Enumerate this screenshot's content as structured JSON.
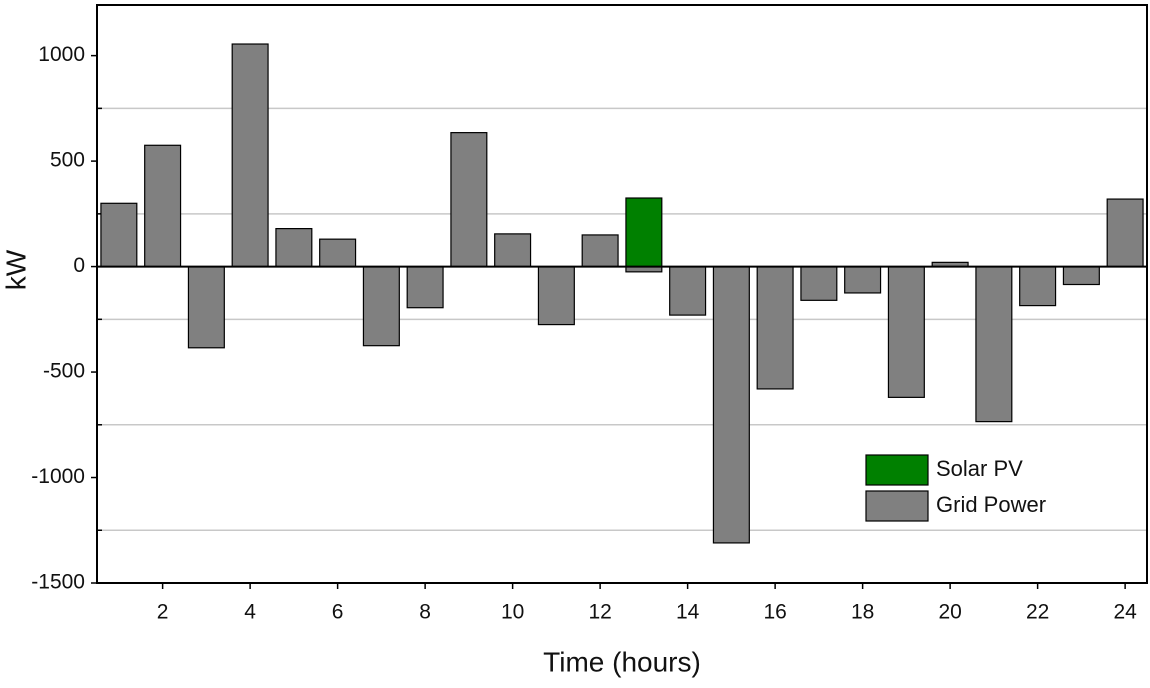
{
  "chart_data": {
    "type": "bar",
    "x_label": "Time (hours)",
    "y_label": "kW",
    "x": [
      1,
      2,
      3,
      4,
      5,
      6,
      7,
      8,
      9,
      10,
      11,
      12,
      13,
      14,
      15,
      16,
      17,
      18,
      19,
      20,
      21,
      22,
      23,
      24
    ],
    "series": [
      {
        "name": "Solar PV",
        "color": "#008000",
        "values": [
          null,
          null,
          null,
          null,
          null,
          null,
          null,
          null,
          null,
          null,
          null,
          null,
          325,
          null,
          null,
          null,
          null,
          null,
          null,
          null,
          null,
          null,
          null,
          null
        ]
      },
      {
        "name": "Grid Power",
        "color": "#808080",
        "values": [
          300,
          575,
          -385,
          1055,
          180,
          130,
          -375,
          -195,
          635,
          155,
          -275,
          150,
          -25,
          -230,
          -1310,
          -580,
          -160,
          -125,
          -620,
          20,
          -735,
          -185,
          -85,
          320
        ]
      }
    ],
    "xlim": [
      0.5,
      24.5
    ],
    "xticks": [
      2,
      4,
      6,
      8,
      10,
      12,
      14,
      16,
      18,
      20,
      22,
      24
    ],
    "ylim": [
      -1500,
      1240
    ],
    "yticks": [
      -1500,
      -1000,
      -500,
      0,
      500,
      1000
    ],
    "grid_lines": [
      -1250,
      -750,
      -250,
      250,
      750
    ],
    "legend": "lower right"
  }
}
